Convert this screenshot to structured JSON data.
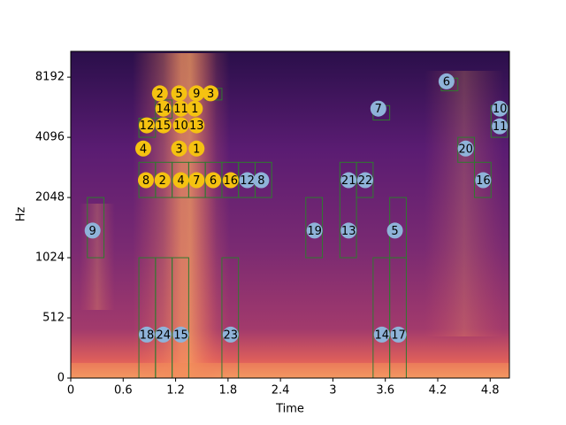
{
  "chart_data": {
    "type": "spectrogram",
    "xlabel": "Time",
    "ylabel": "Hz",
    "xlim": [
      0,
      5.02
    ],
    "xticks": [
      0,
      0.6,
      1.2,
      1.8,
      2.4,
      3,
      3.6,
      4.2,
      4.8
    ],
    "ylim": [
      0,
      11025
    ],
    "yticks": [
      0,
      512,
      1024,
      2048,
      4096,
      8192
    ],
    "yscale": "symlog",
    "linthresh": 512,
    "base": 2,
    "box_color": "#2f7a2f",
    "boxes": [
      {
        "x": [
          0.19,
          0.38
        ],
        "y": [
          1024,
          2048
        ]
      },
      {
        "x": [
          0.78,
          0.97
        ],
        "y": [
          2048,
          3072
        ]
      },
      {
        "x": [
          0.97,
          1.16
        ],
        "y": [
          2048,
          3072
        ]
      },
      {
        "x": [
          1.16,
          1.35
        ],
        "y": [
          2048,
          3072
        ]
      },
      {
        "x": [
          1.35,
          1.54
        ],
        "y": [
          2048,
          3072
        ]
      },
      {
        "x": [
          1.54,
          1.73
        ],
        "y": [
          2048,
          3072
        ]
      },
      {
        "x": [
          1.73,
          1.92
        ],
        "y": [
          2048,
          3072
        ]
      },
      {
        "x": [
          1.92,
          2.11
        ],
        "y": [
          2048,
          3072
        ]
      },
      {
        "x": [
          2.11,
          2.3
        ],
        "y": [
          2048,
          3072
        ]
      },
      {
        "x": [
          0.78,
          0.97
        ],
        "y": [
          4096,
          5100
        ]
      },
      {
        "x": [
          0.97,
          1.16
        ],
        "y": [
          5100,
          6300
        ]
      },
      {
        "x": [
          1.54,
          1.73
        ],
        "y": [
          6300,
          7200
        ]
      },
      {
        "x": [
          2.69,
          2.88
        ],
        "y": [
          1024,
          2048
        ]
      },
      {
        "x": [
          3.08,
          3.27
        ],
        "y": [
          1024,
          3072
        ]
      },
      {
        "x": [
          3.27,
          3.46
        ],
        "y": [
          2048,
          3072
        ]
      },
      {
        "x": [
          3.65,
          3.84
        ],
        "y": [
          1024,
          2048
        ]
      },
      {
        "x": [
          0.78,
          0.97
        ],
        "y": [
          0,
          1024
        ]
      },
      {
        "x": [
          0.97,
          1.16
        ],
        "y": [
          0,
          1024
        ]
      },
      {
        "x": [
          1.16,
          1.35
        ],
        "y": [
          0,
          1024
        ]
      },
      {
        "x": [
          1.73,
          1.92
        ],
        "y": [
          0,
          1024
        ]
      },
      {
        "x": [
          3.46,
          3.65
        ],
        "y": [
          0,
          1024
        ]
      },
      {
        "x": [
          3.65,
          3.84
        ],
        "y": [
          0,
          1024
        ]
      },
      {
        "x": [
          4.24,
          4.43
        ],
        "y": [
          7000,
          8100
        ]
      },
      {
        "x": [
          3.46,
          3.65
        ],
        "y": [
          5000,
          5900
        ]
      },
      {
        "x": [
          4.43,
          4.62
        ],
        "y": [
          3072,
          4096
        ]
      },
      {
        "x": [
          4.62,
          4.81
        ],
        "y": [
          2048,
          3072
        ]
      },
      {
        "x": [
          4.81,
          5.0
        ],
        "y": [
          4096,
          5900
        ]
      }
    ],
    "markers": [
      {
        "color": "#f5c211",
        "points": [
          {
            "label": "2",
            "x": 1.02,
            "y": 6800
          },
          {
            "label": "5",
            "x": 1.24,
            "y": 6800
          },
          {
            "label": "9",
            "x": 1.44,
            "y": 6800
          },
          {
            "label": "3",
            "x": 1.6,
            "y": 6800
          },
          {
            "label": "14",
            "x": 1.06,
            "y": 5700
          },
          {
            "label": "11",
            "x": 1.26,
            "y": 5700
          },
          {
            "label": "1",
            "x": 1.42,
            "y": 5700
          },
          {
            "label": "12",
            "x": 0.87,
            "y": 4700
          },
          {
            "label": "15",
            "x": 1.06,
            "y": 4700
          },
          {
            "label": "10",
            "x": 1.26,
            "y": 4700
          },
          {
            "label": "13",
            "x": 1.44,
            "y": 4700
          },
          {
            "label": "4",
            "x": 0.83,
            "y": 3600
          },
          {
            "label": "3",
            "x": 1.24,
            "y": 3600
          },
          {
            "label": "1",
            "x": 1.44,
            "y": 3600
          },
          {
            "label": "8",
            "x": 0.86,
            "y": 2500
          },
          {
            "label": "2",
            "x": 1.05,
            "y": 2500
          },
          {
            "label": "4",
            "x": 1.26,
            "y": 2500
          },
          {
            "label": "7",
            "x": 1.44,
            "y": 2500
          },
          {
            "label": "6",
            "x": 1.63,
            "y": 2500
          },
          {
            "label": "16",
            "x": 1.83,
            "y": 2500
          }
        ]
      },
      {
        "color": "#8fb3d9",
        "points": [
          {
            "label": "12",
            "x": 2.02,
            "y": 2500
          },
          {
            "label": "8",
            "x": 2.18,
            "y": 2500
          },
          {
            "label": "21",
            "x": 3.18,
            "y": 2500
          },
          {
            "label": "22",
            "x": 3.37,
            "y": 2500
          },
          {
            "label": "16",
            "x": 4.72,
            "y": 2500
          },
          {
            "label": "9",
            "x": 0.25,
            "y": 1400
          },
          {
            "label": "19",
            "x": 2.79,
            "y": 1400
          },
          {
            "label": "13",
            "x": 3.18,
            "y": 1400
          },
          {
            "label": "5",
            "x": 3.71,
            "y": 1400
          },
          {
            "label": "6",
            "x": 4.3,
            "y": 7800
          },
          {
            "label": "7",
            "x": 3.52,
            "y": 5700
          },
          {
            "label": "10",
            "x": 4.91,
            "y": 5700
          },
          {
            "label": "11",
            "x": 4.91,
            "y": 4650
          },
          {
            "label": "20",
            "x": 4.52,
            "y": 3600
          },
          {
            "label": "18",
            "x": 0.87,
            "y": 370
          },
          {
            "label": "24",
            "x": 1.06,
            "y": 370
          },
          {
            "label": "15",
            "x": 1.26,
            "y": 370
          },
          {
            "label": "23",
            "x": 1.83,
            "y": 370
          },
          {
            "label": "14",
            "x": 3.56,
            "y": 370
          },
          {
            "label": "17",
            "x": 3.75,
            "y": 370
          }
        ]
      }
    ]
  }
}
